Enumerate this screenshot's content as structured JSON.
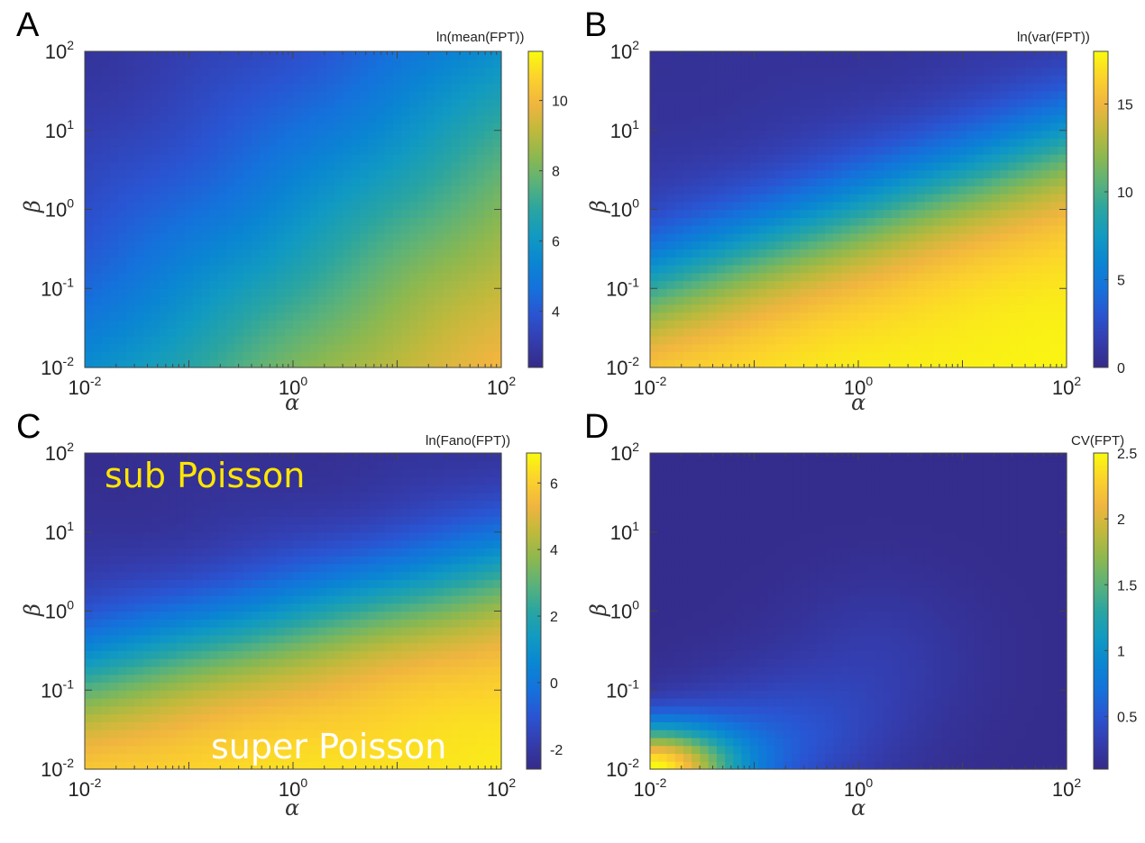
{
  "colors": {
    "parula": [
      "#352a87",
      "#343dae",
      "#2a54d2",
      "#1571dc",
      "#0a86d2",
      "#119ac2",
      "#2aa5a1",
      "#5ab27a",
      "#8db84f",
      "#c0b93c",
      "#f0b53f",
      "#fcd22c",
      "#f9fb0e"
    ],
    "axis": "#444444",
    "annotation_sub": "#ffe600",
    "annotation_super": "#ffffff"
  },
  "chart_data": [
    {
      "type": "heatmap",
      "panel": "A",
      "xlabel": "α",
      "ylabel": "β",
      "x_scale": "log",
      "y_scale": "log",
      "xlim": [
        0.01,
        100
      ],
      "ylim": [
        0.01,
        100
      ],
      "x_ticks": [
        {
          "base": "10",
          "exp": "-2"
        },
        {
          "base": "10",
          "exp": "0"
        },
        {
          "base": "10",
          "exp": "2"
        }
      ],
      "y_ticks": [
        {
          "base": "10",
          "exp": "-2"
        },
        {
          "base": "10",
          "exp": "-1"
        },
        {
          "base": "10",
          "exp": "0"
        },
        {
          "base": "10",
          "exp": "1"
        },
        {
          "base": "10",
          "exp": "2"
        }
      ],
      "colorbar": {
        "title": "ln(mean(FPT))",
        "min": 2.4,
        "max": 11.4,
        "ticks": [
          4,
          6,
          8,
          10
        ]
      },
      "model": {
        "a": 0.55,
        "b": -0.52,
        "c": 0.9,
        "k": 0.25,
        "lo": 2.45,
        "hi": 11.3
      }
    },
    {
      "type": "heatmap",
      "panel": "B",
      "xlabel": "α",
      "ylabel": "β",
      "x_scale": "log",
      "y_scale": "log",
      "xlim": [
        0.01,
        100
      ],
      "ylim": [
        0.01,
        100
      ],
      "x_ticks": [
        {
          "base": "10",
          "exp": "-2"
        },
        {
          "base": "10",
          "exp": "0"
        },
        {
          "base": "10",
          "exp": "2"
        }
      ],
      "y_ticks": [
        {
          "base": "10",
          "exp": "-2"
        },
        {
          "base": "10",
          "exp": "-1"
        },
        {
          "base": "10",
          "exp": "0"
        },
        {
          "base": "10",
          "exp": "1"
        },
        {
          "base": "10",
          "exp": "2"
        }
      ],
      "colorbar": {
        "title": "ln(var(FPT))",
        "min": 0,
        "max": 18,
        "ticks": [
          0,
          5,
          10,
          15
        ]
      },
      "model": {
        "a": 0.85,
        "b": -1.9,
        "c": 1.2,
        "k": 0.18,
        "lo": 0.6,
        "hi": 17.8
      }
    },
    {
      "type": "heatmap",
      "panel": "C",
      "xlabel": "α",
      "ylabel": "β",
      "x_scale": "log",
      "y_scale": "log",
      "xlim": [
        0.01,
        100
      ],
      "ylim": [
        0.01,
        100
      ],
      "x_ticks": [
        {
          "base": "10",
          "exp": "-2"
        },
        {
          "base": "10",
          "exp": "0"
        },
        {
          "base": "10",
          "exp": "2"
        }
      ],
      "y_ticks": [
        {
          "base": "10",
          "exp": "-2"
        },
        {
          "base": "10",
          "exp": "-1"
        },
        {
          "base": "10",
          "exp": "0"
        },
        {
          "base": "10",
          "exp": "1"
        },
        {
          "base": "10",
          "exp": "2"
        }
      ],
      "colorbar": {
        "title": "ln(Fano(FPT))",
        "min": -2.6,
        "max": 6.9,
        "ticks": [
          -2,
          0,
          2,
          4,
          6
        ]
      },
      "annotations": [
        "sub Poisson",
        "super Poisson"
      ],
      "model": {
        "a": 0.6,
        "b": -1.85,
        "c": 1.1,
        "k": 0.22,
        "lo": -2.4,
        "hi": 6.6
      }
    },
    {
      "type": "heatmap",
      "panel": "D",
      "xlabel": "α",
      "ylabel": "β",
      "x_scale": "log",
      "y_scale": "log",
      "xlim": [
        0.01,
        100
      ],
      "ylim": [
        0.01,
        100
      ],
      "x_ticks": [
        {
          "base": "10",
          "exp": "-2"
        },
        {
          "base": "10",
          "exp": "0"
        },
        {
          "base": "10",
          "exp": "2"
        }
      ],
      "y_ticks": [
        {
          "base": "10",
          "exp": "-2"
        },
        {
          "base": "10",
          "exp": "-1"
        },
        {
          "base": "10",
          "exp": "0"
        },
        {
          "base": "10",
          "exp": "1"
        },
        {
          "base": "10",
          "exp": "2"
        }
      ],
      "colorbar": {
        "title": "CV(FPT)",
        "min": 0.1,
        "max": 2.5,
        "ticks": [
          0.5,
          1,
          1.5,
          2,
          2.5
        ]
      },
      "model": {
        "kind": "cv"
      }
    }
  ]
}
